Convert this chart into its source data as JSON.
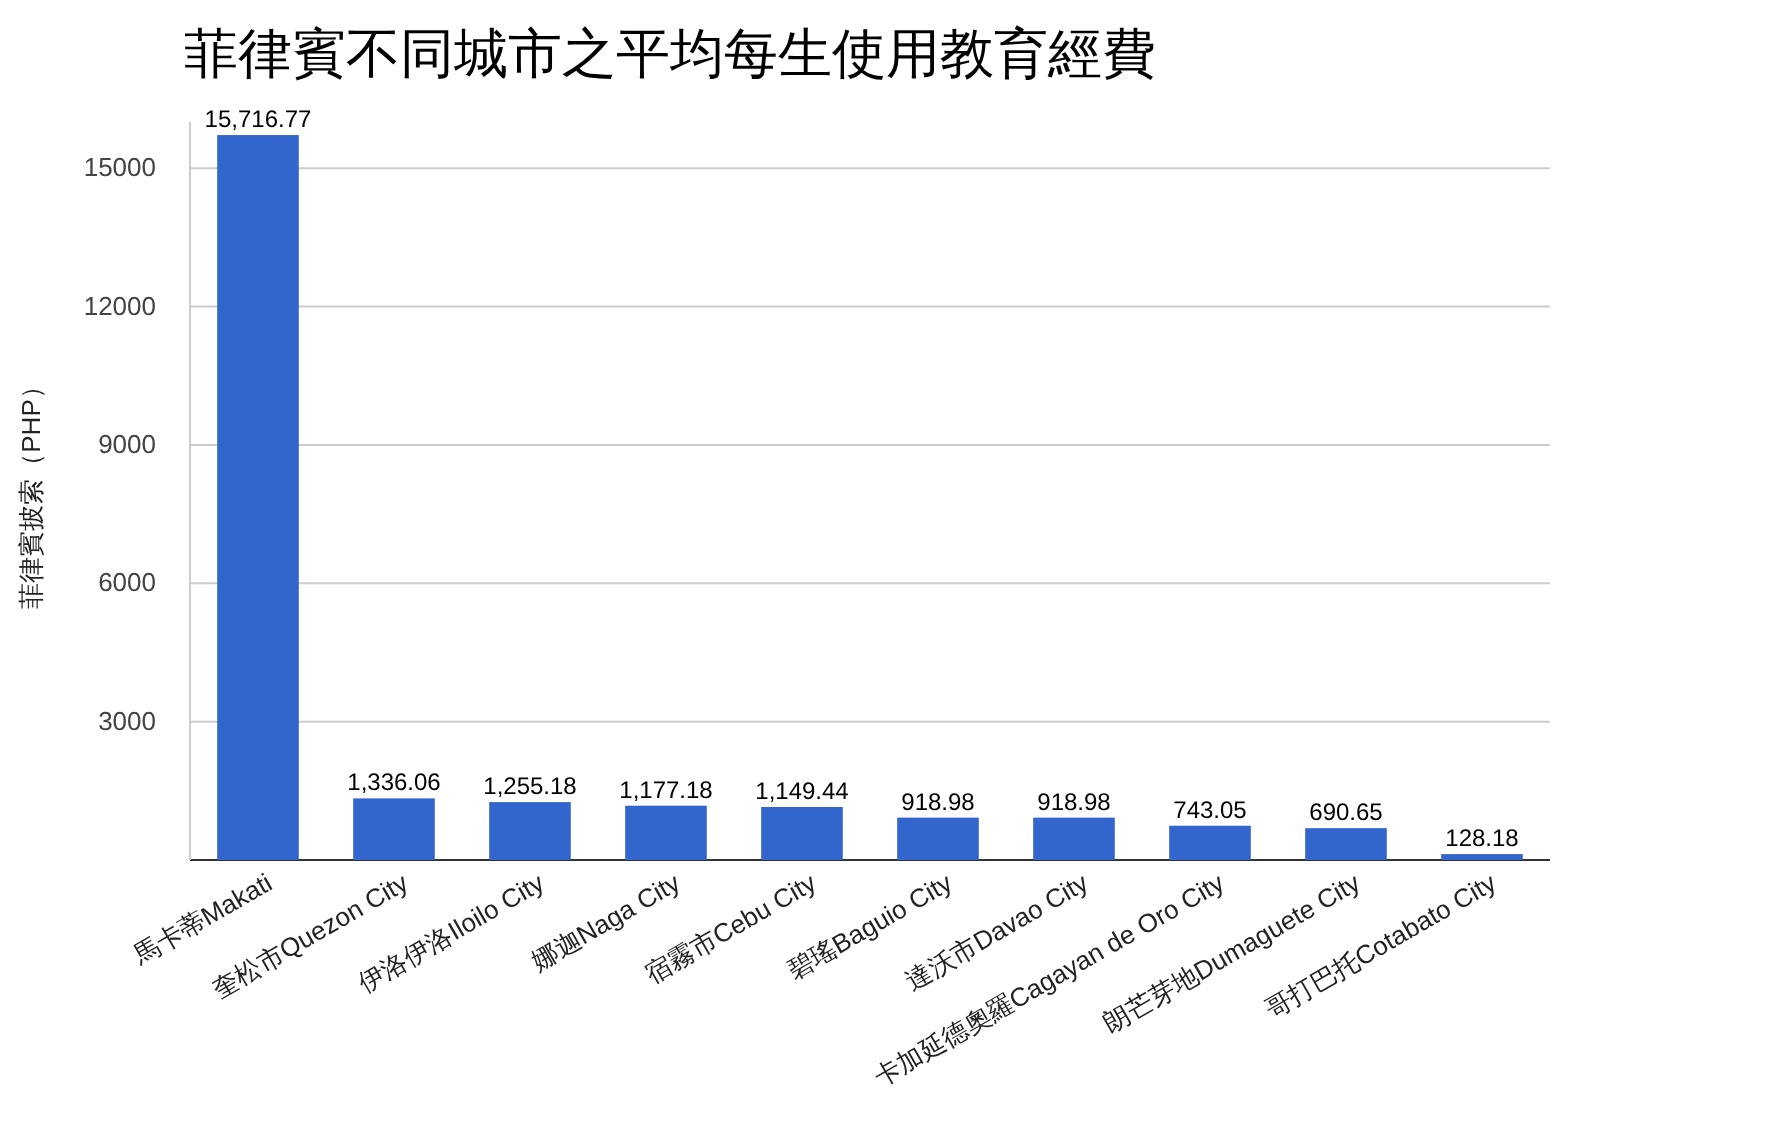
{
  "chart_data": {
    "type": "bar",
    "title": "菲律賓不同城市之平均每生使用教育經費",
    "ylabel": "菲律賓披索（PHP）",
    "categories": [
      "馬卡蒂Makati",
      "奎松市Quezon City",
      "伊洛伊洛Iloilo City",
      "娜迦Naga City",
      "宿霧市Cebu City",
      "碧瑤Baguio City",
      "達沃市Davao City",
      "卡加延德奧羅Cagayan de Oro City",
      "朗芒芽地Dumaguete City",
      "哥打巴托Cotabato City"
    ],
    "values": [
      15716.77,
      1336.06,
      1255.18,
      1177.18,
      1149.44,
      918.98,
      918.98,
      743.05,
      690.65,
      128.18
    ],
    "value_labels": [
      "15,716.77",
      "1,336.06",
      "1,255.18",
      "1,177.18",
      "1,149.44",
      "918.98",
      "918.98",
      "743.05",
      "690.65",
      "128.18"
    ],
    "color": "#3366cc",
    "ylim": [
      0,
      16000
    ],
    "yticks": [
      3000,
      6000,
      9000,
      12000,
      15000
    ],
    "grid": "y"
  }
}
